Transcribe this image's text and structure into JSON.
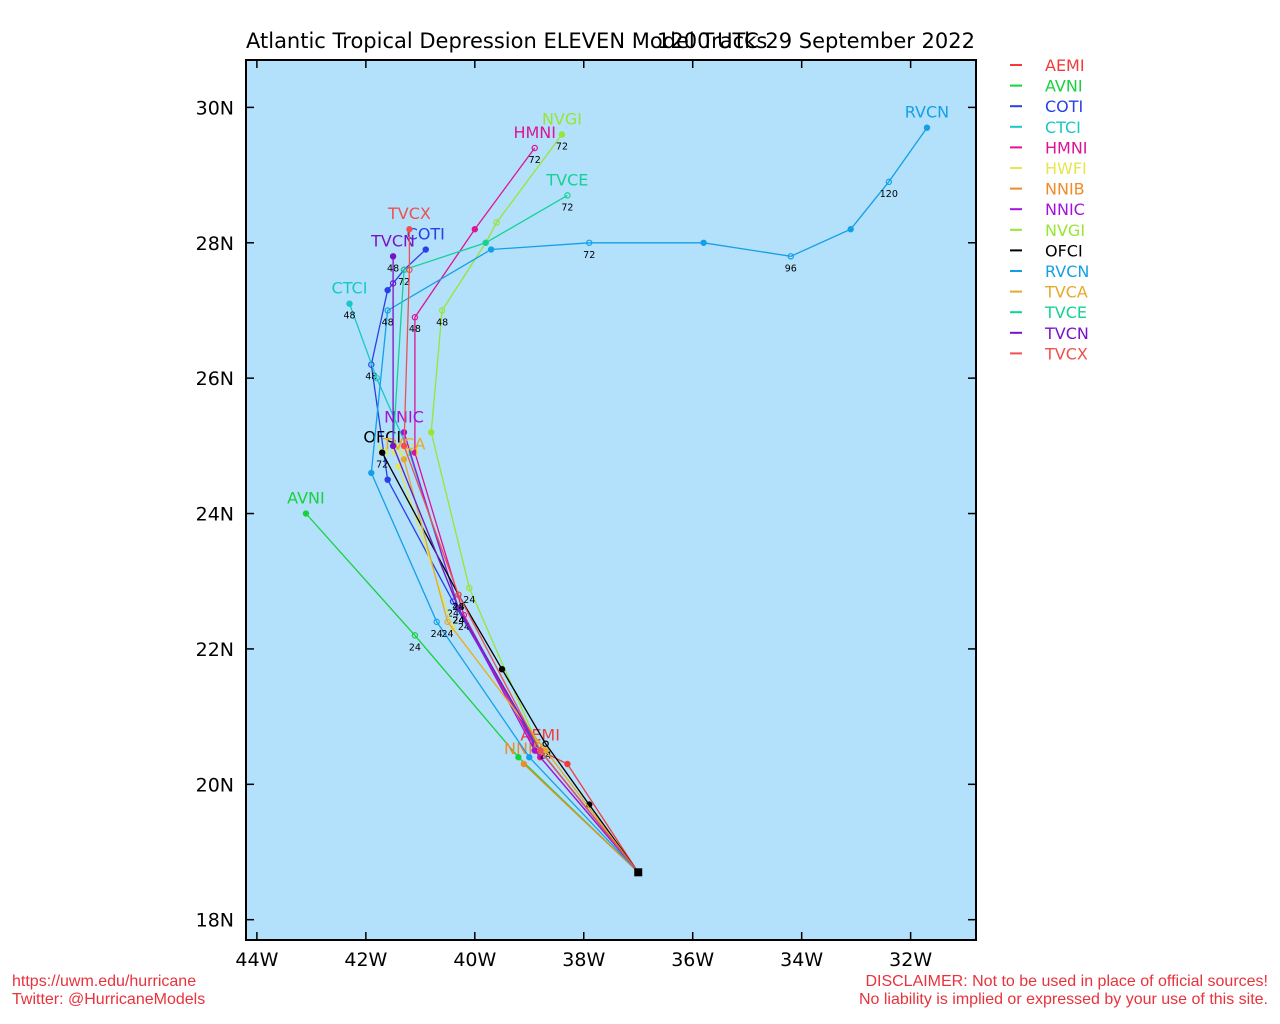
{
  "chart_data": {
    "type": "line",
    "title": "Atlantic Tropical Depression ELEVEN Model Tracks",
    "subtitle": "1200 UTC 29 September 2022",
    "x_axis": {
      "unit": "degrees longitude",
      "range": [
        -44.2,
        -30.8
      ],
      "ticks": [
        -44,
        -42,
        -40,
        -38,
        -36,
        -34,
        -32
      ],
      "tick_labels": [
        "44W",
        "42W",
        "40W",
        "38W",
        "36W",
        "34W",
        "32W"
      ]
    },
    "y_axis": {
      "unit": "degrees latitude",
      "range": [
        17.7,
        30.7
      ],
      "ticks": [
        18,
        20,
        22,
        24,
        26,
        28,
        30
      ],
      "tick_labels": [
        "18N",
        "20N",
        "22N",
        "24N",
        "26N",
        "28N",
        "30N"
      ]
    },
    "background_color": "#b3e0fb",
    "legend_position": "right-outside-top",
    "start_point": {
      "lon": -37.0,
      "lat": 18.7
    },
    "series": [
      {
        "name": "AEMI",
        "color": "#f03c3c",
        "label": "AEMI",
        "points": [
          [
            -37.0,
            18.7
          ],
          [
            -38.3,
            20.3
          ],
          [
            -38.8,
            20.5
          ]
        ],
        "hour_labels": []
      },
      {
        "name": "AVNI",
        "color": "#16d23c",
        "label": "AVNI",
        "points": [
          [
            -37.0,
            18.7
          ],
          [
            -39.2,
            20.4
          ],
          [
            -41.1,
            22.2
          ],
          [
            -43.1,
            24.0
          ]
        ],
        "hour_labels": [
          [
            -41.1,
            22.2,
            "24"
          ]
        ]
      },
      {
        "name": "COTI",
        "color": "#2840e6",
        "label": "COTI",
        "points": [
          [
            -37.0,
            18.7
          ],
          [
            -38.9,
            20.6
          ],
          [
            -40.4,
            22.7
          ],
          [
            -41.6,
            24.5
          ],
          [
            -41.9,
            26.2
          ],
          [
            -41.6,
            27.3
          ],
          [
            -41.3,
            27.6
          ],
          [
            -40.9,
            27.9
          ]
        ],
        "hour_labels": [
          [
            -40.4,
            22.7,
            "24"
          ],
          [
            -41.9,
            26.2,
            "48"
          ],
          [
            -41.3,
            27.6,
            "72"
          ]
        ]
      },
      {
        "name": "CTCI",
        "color": "#18c8c8",
        "label": "CTCI",
        "points": [
          [
            -37.0,
            18.7
          ],
          [
            -38.8,
            20.5
          ],
          [
            -40.3,
            22.6
          ],
          [
            -41.2,
            24.9
          ],
          [
            -41.8,
            26.0
          ],
          [
            -42.3,
            27.1
          ]
        ],
        "hour_labels": [
          [
            -40.3,
            22.6,
            "24"
          ],
          [
            -42.3,
            27.1,
            "48"
          ]
        ]
      },
      {
        "name": "HMNI",
        "color": "#dc1496",
        "label": "HMNI",
        "points": [
          [
            -37.0,
            18.7
          ],
          [
            -38.8,
            20.4
          ],
          [
            -40.2,
            22.5
          ],
          [
            -41.1,
            24.9
          ],
          [
            -41.1,
            26.9
          ],
          [
            -40.0,
            28.2
          ],
          [
            -38.9,
            29.4
          ]
        ],
        "hour_labels": [
          [
            -40.2,
            22.5,
            "24"
          ],
          [
            -41.1,
            26.9,
            "48"
          ],
          [
            -38.9,
            29.4,
            "72"
          ]
        ]
      },
      {
        "name": "HWFI",
        "color": "#e6e650",
        "label": "HWFI",
        "points": [
          [
            -37.0,
            18.7
          ],
          [
            -38.7,
            20.5
          ],
          [
            -40.4,
            22.3
          ],
          [
            -41.4,
            24.7
          ]
        ],
        "hour_labels": []
      },
      {
        "name": "NNIB",
        "color": "#f08c28",
        "label": "NNIB",
        "points": [
          [
            -37.0,
            18.7
          ],
          [
            -39.1,
            20.3
          ]
        ],
        "hour_labels": []
      },
      {
        "name": "NNIC",
        "color": "#a014dc",
        "label": "NNIC",
        "points": [
          [
            -37.0,
            18.7
          ],
          [
            -38.9,
            20.5
          ],
          [
            -40.3,
            22.6
          ],
          [
            -41.3,
            25.2
          ]
        ],
        "hour_labels": [
          [
            -40.3,
            22.6,
            "24"
          ]
        ]
      },
      {
        "name": "NVGI",
        "color": "#96e632",
        "label": "NVGI",
        "points": [
          [
            -37.0,
            18.7
          ],
          [
            -38.8,
            20.5
          ],
          [
            -40.1,
            22.9
          ],
          [
            -40.8,
            25.2
          ],
          [
            -40.6,
            27.0
          ],
          [
            -39.8,
            28.0
          ],
          [
            -39.6,
            28.3
          ],
          [
            -38.4,
            29.6
          ]
        ],
        "hour_labels": [
          [
            -40.1,
            22.9,
            "24"
          ],
          [
            -40.6,
            27.0,
            "48"
          ],
          [
            -38.4,
            29.6,
            "72"
          ]
        ]
      },
      {
        "name": "OFCI",
        "color": "#000000",
        "label": "OFCI",
        "points": [
          [
            -37.0,
            18.7
          ],
          [
            -37.9,
            19.7
          ],
          [
            -38.7,
            20.6
          ],
          [
            -39.5,
            21.7
          ],
          [
            -40.3,
            22.8
          ],
          [
            -41.7,
            24.9
          ]
        ],
        "hour_labels": [
          [
            -38.7,
            20.6,
            "24"
          ],
          [
            -40.3,
            22.8,
            "48"
          ],
          [
            -41.7,
            24.9,
            "72"
          ]
        ]
      },
      {
        "name": "RVCN",
        "color": "#14a0e6",
        "label": "RVCN",
        "points": [
          [
            -37.0,
            18.7
          ],
          [
            -39.0,
            20.4
          ],
          [
            -40.7,
            22.4
          ],
          [
            -41.9,
            24.6
          ],
          [
            -41.6,
            27.0
          ],
          [
            -39.7,
            27.9
          ],
          [
            -37.9,
            28.0
          ],
          [
            -35.8,
            28.0
          ],
          [
            -34.2,
            27.8
          ],
          [
            -33.1,
            28.2
          ],
          [
            -32.4,
            28.9
          ],
          [
            -31.7,
            29.7
          ]
        ],
        "hour_labels": [
          [
            -40.7,
            22.4,
            "24"
          ],
          [
            -41.6,
            27.0,
            "48"
          ],
          [
            -37.9,
            28.0,
            "72"
          ],
          [
            -34.2,
            27.8,
            "96"
          ],
          [
            -32.4,
            28.9,
            "120"
          ]
        ]
      },
      {
        "name": "TVCA",
        "color": "#e6aa28",
        "label": "TVCA",
        "points": [
          [
            -37.0,
            18.7
          ],
          [
            -38.7,
            20.5
          ],
          [
            -40.5,
            22.4
          ],
          [
            -41.3,
            24.8
          ]
        ],
        "hour_labels": [
          [
            -40.5,
            22.4,
            "24"
          ]
        ]
      },
      {
        "name": "TVCE",
        "color": "#14d296",
        "label": "TVCE",
        "points": [
          [
            -37.0,
            18.7
          ],
          [
            -38.8,
            20.5
          ],
          [
            -40.3,
            22.6
          ],
          [
            -41.5,
            25.0
          ],
          [
            -41.3,
            27.6
          ],
          [
            -39.8,
            28.0
          ],
          [
            -38.3,
            28.7
          ]
        ],
        "hour_labels": [
          [
            -40.3,
            22.6,
            "24"
          ],
          [
            -38.3,
            28.7,
            "72"
          ]
        ]
      },
      {
        "name": "TVCN",
        "color": "#7814c8",
        "label": "TVCN",
        "points": [
          [
            -37.0,
            18.7
          ],
          [
            -38.8,
            20.5
          ],
          [
            -40.3,
            22.6
          ],
          [
            -41.5,
            25.0
          ],
          [
            -41.5,
            27.4
          ],
          [
            -41.5,
            27.8
          ]
        ],
        "hour_labels": [
          [
            -40.3,
            22.6,
            "24"
          ],
          [
            -41.5,
            27.8,
            "48"
          ]
        ]
      },
      {
        "name": "TVCX",
        "color": "#f05050",
        "label": "TVCX",
        "points": [
          [
            -37.0,
            18.7
          ],
          [
            -38.8,
            20.5
          ],
          [
            -40.3,
            22.8
          ],
          [
            -41.3,
            25.0
          ],
          [
            -41.2,
            27.6
          ],
          [
            -41.2,
            28.2
          ]
        ],
        "hour_labels": [
          [
            -40.3,
            22.8,
            "24"
          ]
        ]
      }
    ]
  },
  "footer": {
    "left_line1": "https://uwm.edu/hurricane",
    "left_line2": "Twitter: @HurricaneModels",
    "right_line1": "DISCLAIMER: Not to be used in place of official sources!",
    "right_line2": "No liability is implied or expressed by your use of this site."
  }
}
